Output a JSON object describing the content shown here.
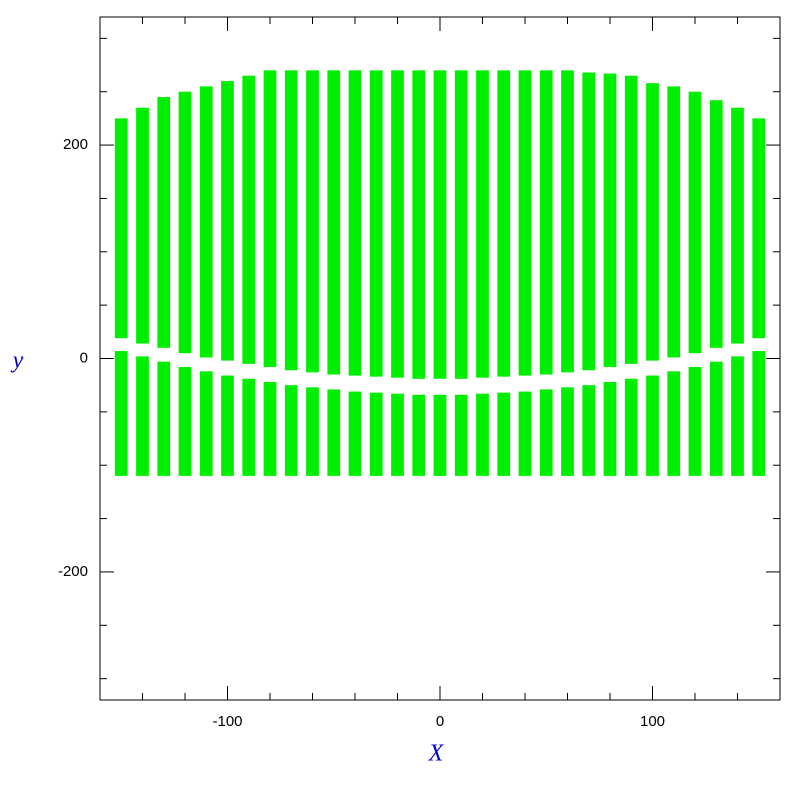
{
  "chart_data": {
    "type": "range-bar",
    "xlabel": "X",
    "ylabel": "y",
    "xlim": [
      -160,
      160
    ],
    "ylim": [
      -320,
      320
    ],
    "xticks": [
      -100,
      0,
      100
    ],
    "yticks": [
      -200,
      0,
      200
    ],
    "xminor": [
      -140,
      -120,
      -80,
      -60,
      -40,
      -20,
      20,
      40,
      60,
      80,
      120,
      140
    ],
    "yminor": [
      -300,
      -250,
      -150,
      -100,
      -50,
      50,
      100,
      150,
      250,
      300
    ],
    "axis_color": "#000000",
    "label_color": "#0000cc",
    "x": [
      -150,
      -140,
      -130,
      -120,
      -110,
      -100,
      -90,
      -80,
      -70,
      -60,
      -50,
      -40,
      -30,
      -20,
      -10,
      0,
      10,
      20,
      30,
      40,
      50,
      60,
      70,
      80,
      90,
      100,
      110,
      120,
      130,
      140,
      150
    ],
    "series": [
      {
        "color": "#00ee00",
        "low": [
          19,
          14,
          10,
          5,
          1,
          -2,
          -5,
          -8,
          -11,
          -13,
          -15,
          -16,
          -17,
          -18,
          -19,
          -19,
          -19,
          -18,
          -17,
          -16,
          -15,
          -13,
          -11,
          -8,
          -5,
          -2,
          1,
          5,
          10,
          14,
          19
        ],
        "high": [
          225,
          235,
          245,
          250,
          255,
          260,
          265,
          270,
          270,
          270,
          270,
          270,
          270,
          270,
          270,
          270,
          270,
          270,
          270,
          270,
          270,
          270,
          268,
          267,
          265,
          258,
          255,
          250,
          242,
          235,
          225
        ]
      },
      {
        "color": "#00ee00",
        "low": [
          -110,
          -110,
          -110,
          -110,
          -110,
          -110,
          -110,
          -110,
          -110,
          -110,
          -110,
          -110,
          -110,
          -110,
          -110,
          -110,
          -110,
          -110,
          -110,
          -110,
          -110,
          -110,
          -110,
          -110,
          -110,
          -110,
          -110,
          -110,
          -110,
          -110,
          -110
        ],
        "high": [
          7,
          2,
          -3,
          -8,
          -12,
          -16,
          -19,
          -22,
          -25,
          -27,
          -29,
          -31,
          -32,
          -33,
          -34,
          -34,
          -34,
          -33,
          -32,
          -31,
          -29,
          -27,
          -25,
          -22,
          -19,
          -16,
          -12,
          -8,
          -3,
          2,
          7
        ]
      }
    ]
  }
}
